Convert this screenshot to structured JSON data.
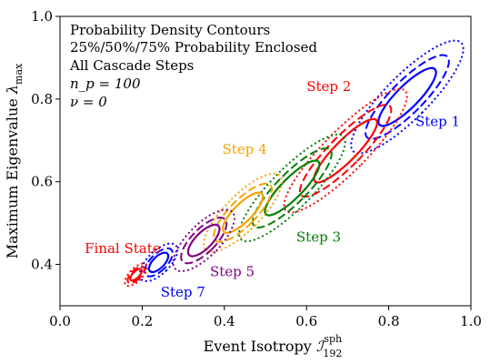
{
  "chart_data": {
    "type": "contour",
    "title": "",
    "xlabel": "Event Isotropy ℐ¹⁹²ˢᵖʰ",
    "xlabel_main": "Event Isotropy ",
    "xlabel_symbol": "ℐ",
    "xlabel_sub": "192",
    "xlabel_sup": "sph",
    "ylabel": "Maximum Eigenvalue λmax",
    "ylabel_main": "Maximum Eigenvalue ",
    "ylabel_symbol": "λ",
    "ylabel_sub": "max",
    "xlim": [
      0.0,
      1.0
    ],
    "ylim": [
      0.3,
      1.0
    ],
    "xticks": [
      "0.0",
      "0.2",
      "0.4",
      "0.6",
      "0.8",
      "1.0"
    ],
    "yticks": [
      "0.4",
      "0.6",
      "0.8",
      "1.0"
    ],
    "info_lines": [
      "Probability Density Contours",
      "25%/50%/75% Probability Enclosed",
      "All Cascade Steps",
      "n_p = 100",
      "ν = 0"
    ],
    "contour_levels": [
      "25%",
      "50%",
      "75%"
    ],
    "series": [
      {
        "name": "Step 1",
        "color": "#0000ff",
        "center": [
          0.845,
          0.805
        ],
        "rx": 0.027,
        "ry": 0.095,
        "label_at": [
          0.865,
          0.735
        ]
      },
      {
        "name": "Step 2",
        "color": "#ff0000",
        "center": [
          0.695,
          0.675
        ],
        "rx": 0.026,
        "ry": 0.105,
        "label_at": [
          0.6,
          0.82
        ]
      },
      {
        "name": "Step 3",
        "color": "#008000",
        "center": [
          0.565,
          0.585
        ],
        "rx": 0.025,
        "ry": 0.09,
        "label_at": [
          0.575,
          0.455
        ]
      },
      {
        "name": "Step 4",
        "color": "#f5a300",
        "center": [
          0.445,
          0.525
        ],
        "rx": 0.022,
        "ry": 0.065,
        "label_at": [
          0.395,
          0.668
        ]
      },
      {
        "name": "Step 5",
        "color": "#800080",
        "center": [
          0.35,
          0.458
        ],
        "rx": 0.02,
        "ry": 0.05,
        "label_at": [
          0.365,
          0.372
        ]
      },
      {
        "name": "Step 7",
        "color": "#0000ff",
        "center": [
          0.24,
          0.405
        ],
        "rx": 0.014,
        "ry": 0.03,
        "label_at": [
          0.245,
          0.322
        ]
      },
      {
        "name": "Final State",
        "color": "#ff0000",
        "center": [
          0.185,
          0.375
        ],
        "rx": 0.008,
        "ry": 0.018,
        "label_at": [
          0.06,
          0.428
        ]
      }
    ]
  }
}
